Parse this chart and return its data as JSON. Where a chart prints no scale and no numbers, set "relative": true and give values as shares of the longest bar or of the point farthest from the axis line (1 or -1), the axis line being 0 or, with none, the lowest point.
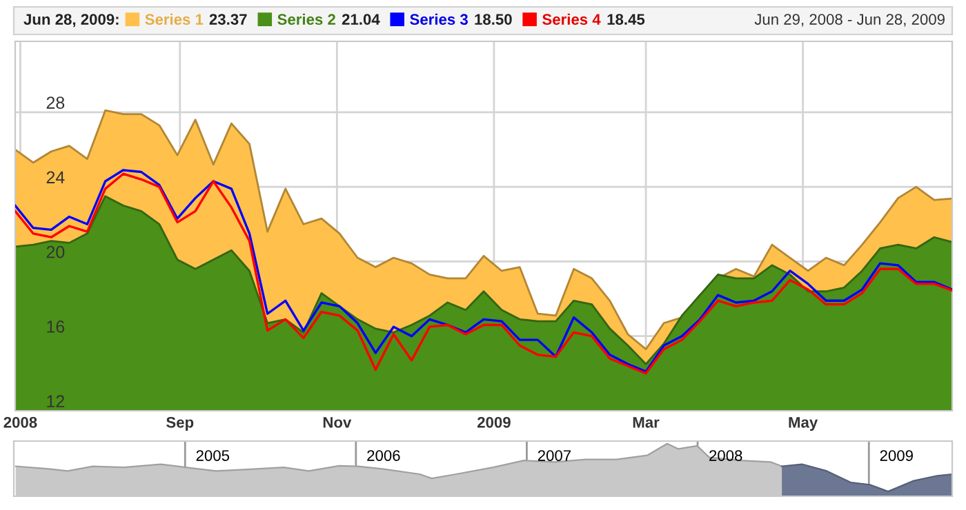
{
  "chart_data": [
    {
      "type": "area",
      "annotations": [
        "Jun 28, 2009:",
        "Jun 29, 2008 - Jun 28, 2009",
        "23.37",
        "21.04",
        "18.50",
        "18.45"
      ],
      "x": [
        "2008-06-29",
        "2008-07-06",
        "2008-07-13",
        "2008-07-20",
        "2008-07-27",
        "2008-08-03",
        "2008-08-10",
        "2008-08-17",
        "2008-08-24",
        "2008-08-31",
        "2008-09-07",
        "2008-09-14",
        "2008-09-21",
        "2008-09-28",
        "2008-10-05",
        "2008-10-12",
        "2008-10-19",
        "2008-10-26",
        "2008-11-02",
        "2008-11-09",
        "2008-11-16",
        "2008-11-23",
        "2008-11-30",
        "2008-12-07",
        "2008-12-14",
        "2008-12-21",
        "2008-12-28",
        "2009-01-04",
        "2009-01-11",
        "2009-01-18",
        "2009-01-25",
        "2009-02-01",
        "2009-02-08",
        "2009-02-15",
        "2009-02-22",
        "2009-03-01",
        "2009-03-08",
        "2009-03-15",
        "2009-03-22",
        "2009-03-29",
        "2009-04-05",
        "2009-04-12",
        "2009-04-19",
        "2009-04-26",
        "2009-05-03",
        "2009-05-10",
        "2009-05-17",
        "2009-05-24",
        "2009-05-31",
        "2009-06-07",
        "2009-06-14",
        "2009-06-21",
        "2009-06-28"
      ],
      "series": [
        {
          "name": "Series 1",
          "type": "area",
          "color": "#ffc04c",
          "values": [
            26.0,
            25.3,
            25.9,
            26.2,
            25.5,
            28.1,
            27.9,
            27.9,
            27.3,
            25.7,
            27.6,
            25.2,
            27.4,
            26.3,
            21.6,
            23.9,
            22.0,
            22.3,
            21.5,
            20.2,
            19.7,
            20.2,
            19.9,
            19.3,
            19.1,
            19.1,
            20.3,
            19.5,
            19.7,
            17.2,
            17.1,
            19.6,
            19.1,
            17.9,
            16.1,
            15.3,
            16.7,
            17.0,
            18.2,
            19.1,
            19.6,
            19.2,
            20.9,
            20.2,
            19.5,
            20.2,
            19.8,
            20.9,
            22.1,
            23.4,
            24.0,
            23.3,
            23.37
          ]
        },
        {
          "name": "Series 2",
          "type": "area",
          "color": "#4b9018",
          "values": [
            20.8,
            20.9,
            21.1,
            21.0,
            21.5,
            23.5,
            23.0,
            22.7,
            22.0,
            20.1,
            19.6,
            20.1,
            20.6,
            19.5,
            16.7,
            16.9,
            16.2,
            18.3,
            17.6,
            16.9,
            16.4,
            16.2,
            16.6,
            17.1,
            17.8,
            17.4,
            18.4,
            17.4,
            16.9,
            16.8,
            16.8,
            17.9,
            17.7,
            16.4,
            15.5,
            14.5,
            15.6,
            17.1,
            18.2,
            19.3,
            19.1,
            19.1,
            19.8,
            19.3,
            18.4,
            18.4,
            18.6,
            19.5,
            20.7,
            20.9,
            20.7,
            21.3,
            21.04
          ]
        },
        {
          "name": "Series 3",
          "type": "line",
          "color": "#0000ff",
          "values": [
            23.0,
            21.8,
            21.7,
            22.4,
            22.0,
            24.3,
            24.9,
            24.8,
            24.1,
            22.3,
            23.4,
            24.3,
            23.9,
            21.5,
            17.2,
            17.9,
            16.3,
            17.8,
            17.6,
            16.7,
            15.1,
            16.5,
            16.0,
            16.9,
            16.6,
            16.2,
            16.9,
            16.8,
            15.8,
            15.8,
            14.9,
            17.0,
            16.2,
            15.0,
            14.5,
            14.1,
            15.5,
            16.0,
            16.9,
            18.2,
            17.8,
            17.9,
            18.4,
            19.5,
            18.8,
            17.9,
            17.9,
            18.5,
            19.9,
            19.8,
            18.9,
            18.9,
            18.5
          ]
        },
        {
          "name": "Series 4",
          "type": "line",
          "color": "#ff0000",
          "values": [
            22.7,
            21.5,
            21.3,
            21.9,
            21.6,
            23.9,
            24.7,
            24.4,
            24.0,
            22.1,
            22.7,
            24.3,
            22.9,
            21.1,
            16.3,
            16.9,
            15.9,
            17.3,
            17.1,
            16.3,
            14.2,
            16.1,
            14.7,
            16.5,
            16.6,
            16.1,
            16.6,
            16.6,
            15.5,
            15.0,
            14.9,
            16.2,
            16.0,
            14.8,
            14.4,
            14.0,
            15.3,
            15.8,
            16.8,
            17.9,
            17.6,
            17.8,
            17.9,
            19.0,
            18.5,
            17.7,
            17.7,
            18.3,
            19.6,
            19.6,
            18.8,
            18.8,
            18.45
          ]
        }
      ],
      "xlim": [
        "2008-06-29",
        "2009-06-28"
      ],
      "xticks": [
        {
          "value": "2008-07-01",
          "label": "2008"
        },
        {
          "value": "2008-09-01",
          "label": "Sep"
        },
        {
          "value": "2008-11-01",
          "label": "Nov"
        },
        {
          "value": "2009-01-01",
          "label": "2009"
        },
        {
          "value": "2009-03-01",
          "label": "Mar"
        },
        {
          "value": "2009-05-01",
          "label": "May"
        }
      ],
      "ylim": [
        12,
        31.8
      ],
      "yticks": [
        12,
        16,
        20,
        24,
        28
      ],
      "grid": true,
      "legend": "top"
    },
    {
      "type": "area",
      "relative": true,
      "tick_labels": "x",
      "grid": "x",
      "series": [
        {
          "color": "#c8c8c8",
          "x": [
            "2004-01-05",
            "2004-03-16",
            "2004-04-25",
            "2004-06-18",
            "2004-08-23",
            "2004-11-10",
            "2005-01-02",
            "2005-03-08",
            "2005-05-13",
            "2005-07-31",
            "2005-09-22",
            "2005-11-26",
            "2006-01-05",
            "2006-02-27",
            "2006-05-17",
            "2006-06-12",
            "2006-08-03",
            "2006-10-21",
            "2006-12-26",
            "2007-03-02",
            "2007-05-07",
            "2007-07-12",
            "2007-09-16",
            "2007-10-28",
            "2007-11-21",
            "2007-12-31",
            "2008-01-26",
            "2008-04-01",
            "2008-06-06",
            "2008-06-29"
          ],
          "values": [
            0.57,
            0.52,
            0.48,
            0.57,
            0.55,
            0.61,
            0.55,
            0.48,
            0.51,
            0.55,
            0.48,
            0.58,
            0.57,
            0.52,
            0.42,
            0.34,
            0.42,
            0.55,
            0.68,
            0.65,
            0.7,
            0.7,
            0.78,
            1.0,
            0.9,
            0.96,
            0.74,
            0.68,
            0.65,
            0.57
          ]
        },
        {
          "color": "#6b7793",
          "x": [
            "2008-06-29",
            "2008-08-11",
            "2008-10-03",
            "2008-11-24",
            "2009-01-03",
            "2009-02-11",
            "2009-04-05",
            "2009-05-27",
            "2009-06-28"
          ],
          "values": [
            0.57,
            0.61,
            0.48,
            0.26,
            0.22,
            0.09,
            0.29,
            0.39,
            0.42
          ]
        }
      ],
      "xlim": [
        "2004-01-01",
        "2009-06-28"
      ],
      "xticks": [
        {
          "value": "2005-01-01",
          "label": null
        },
        {
          "value": "2005-03-01",
          "label": "2005"
        },
        {
          "value": "2006-01-01",
          "label": null
        },
        {
          "value": "2006-03-01",
          "label": "2006"
        },
        {
          "value": "2007-01-01",
          "label": null
        },
        {
          "value": "2007-03-01",
          "label": "2007"
        },
        {
          "value": "2008-01-01",
          "label": null
        },
        {
          "value": "2008-03-01",
          "label": "2008"
        },
        {
          "value": "2009-01-01",
          "label": null
        },
        {
          "value": "2009-03-01",
          "label": "2009"
        }
      ]
    }
  ]
}
